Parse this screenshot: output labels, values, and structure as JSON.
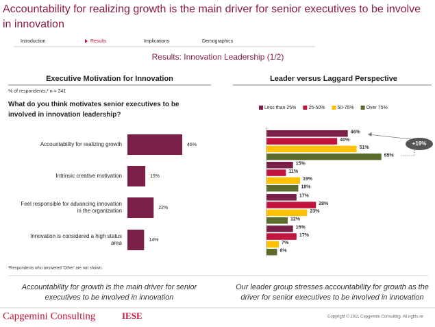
{
  "slide": {
    "title_lines": [
      "Accountability for realizing growth is the main driver for senior executives to be involve",
      "in innovation"
    ],
    "nav": [
      "Introduction",
      "Results",
      "Implications",
      "Demographics"
    ],
    "subtitle": "Results: Innovation Leadership (1/2)",
    "left_caption": "Accountability for growth is the main driver for senior executives to be involved in innovation",
    "right_caption": "Our leader group stresses accountability for growth as the driver for senior executives to be involved in innovation",
    "footer_brand": "Capgemini Consulting",
    "footer_partner": "IESE",
    "copyright": "Copyright © 2011 Capgemini Consulting. All rights re"
  },
  "chart_data": [
    {
      "type": "bar",
      "title": "Executive Motivation for Innovation",
      "note": "% of respondents,¹ n = 241",
      "question": "What do you think motivates senior executives to be involved in innovation leadership?",
      "footnote": "¹Respondents who answered 'Other' are not shown.",
      "categories": [
        "Accountability for realizing growth",
        "Intrinsic creative motivation",
        "Feel responsible for advancing innovation in the organization",
        "Innovation is considered a high status area"
      ],
      "values": [
        46,
        15,
        22,
        14
      ],
      "value_labels": [
        "46%",
        "15%",
        "22%",
        "14%"
      ],
      "color": "#7a1f48"
    },
    {
      "type": "grouped_bar",
      "title": "Leader versus Laggard Perspective",
      "categories": [
        null,
        null,
        null,
        null
      ],
      "series": [
        {
          "name": "Less than 25%",
          "color": "#7a1f48",
          "values": [
            46,
            15,
            17,
            15
          ],
          "value_labels": [
            "46%",
            "15%",
            "17%",
            "15%"
          ]
        },
        {
          "name": "25-50%",
          "color": "#c0143c",
          "values": [
            40,
            11,
            28,
            17
          ],
          "value_labels": [
            "40%",
            "11%",
            "28%",
            "17%"
          ]
        },
        {
          "name": "50-75%",
          "color": "#ffc000",
          "values": [
            51,
            19,
            23,
            7
          ],
          "value_labels": [
            "51%",
            "19%",
            "23%",
            "7%"
          ]
        },
        {
          "name": "Over 75%",
          "color": "#5b6b2b",
          "values": [
            65,
            18,
            12,
            6
          ],
          "value_labels": [
            "65%",
            "18%",
            "12%",
            "6%"
          ]
        }
      ],
      "annotation": "+19%"
    }
  ]
}
